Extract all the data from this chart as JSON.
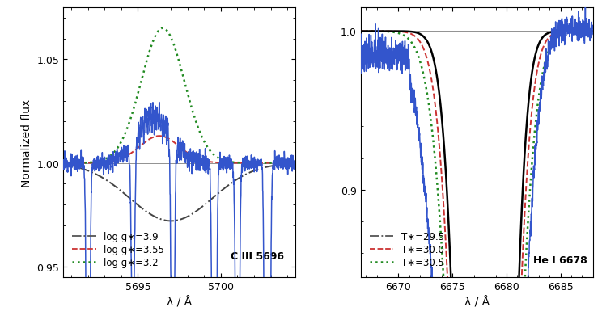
{
  "left_xlim": [
    5690.5,
    5704.5
  ],
  "left_ylim": [
    0.945,
    1.075
  ],
  "left_yticks": [
    0.95,
    1.0,
    1.05
  ],
  "left_xticks": [
    5695,
    5700
  ],
  "right_xlim": [
    6666.5,
    6688.0
  ],
  "right_ylim": [
    0.845,
    1.015
  ],
  "right_yticks": [
    0.9,
    1.0
  ],
  "right_xticks": [
    6670,
    6675,
    6680,
    6685
  ],
  "left_label": "C III 5696",
  "right_label": "He I 6678",
  "ylabel": "Normalized flux",
  "xlabel": "λ / Å",
  "left_legend": [
    "log g∗=3.9",
    "log g∗=3.55",
    "log g∗=3.2"
  ],
  "right_legend": [
    "T∗=29.5",
    "T∗=30.0",
    "T∗=30.5"
  ],
  "blue_color": "#3355cc",
  "green_color": "#228B22",
  "red_color": "#cc3333",
  "gray_color": "#888888",
  "black_color": "#000000"
}
